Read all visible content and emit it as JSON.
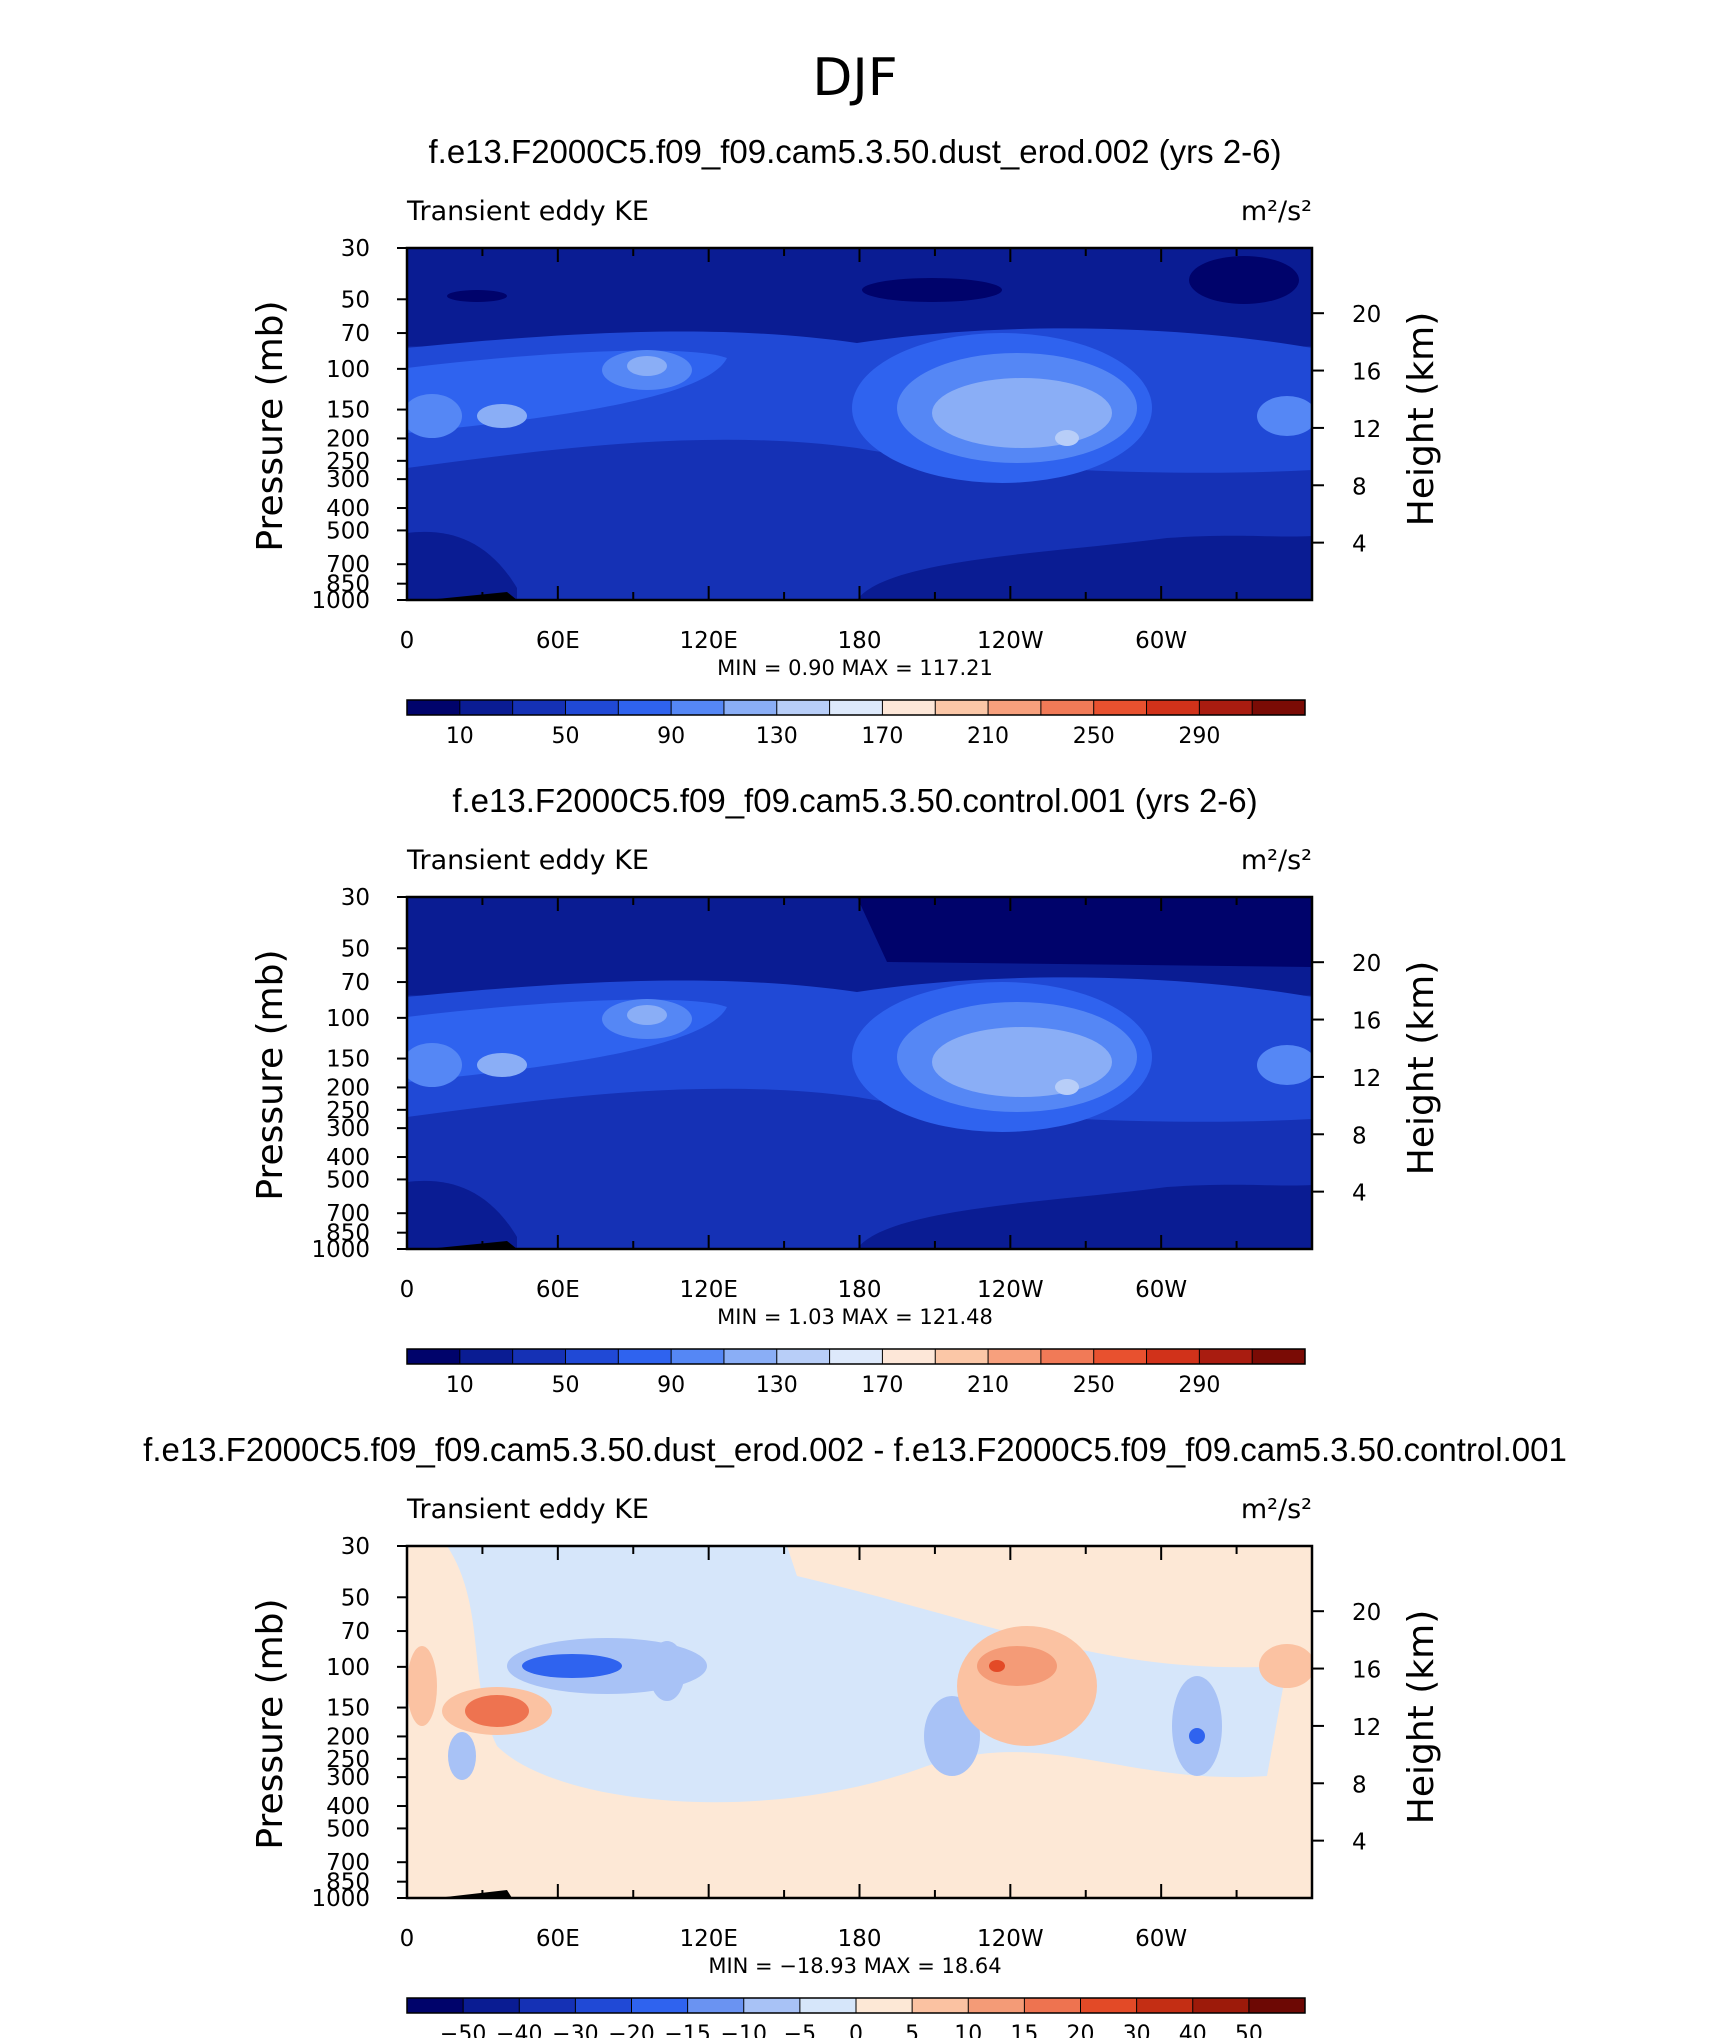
{
  "main_title": "DJF",
  "chart_data": [
    {
      "type": "contour",
      "title": "f.e13.F2000C5.f09_f09.cam5.3.50.dust_erod.002 (yrs 2-6)",
      "left_label": "Transient eddy KE",
      "units": "m²/s²",
      "ylabel": "Pressure (mb)",
      "y2label": "Height (km)",
      "x_ticks": [
        "0",
        "60E",
        "120E",
        "180",
        "120W",
        "60W"
      ],
      "y_ticks": [
        "30",
        "50",
        "70",
        "100",
        "150",
        "200",
        "250",
        "300",
        "400",
        "500",
        "700",
        "850",
        "1000"
      ],
      "y2_ticks": [
        "20",
        "16",
        "12",
        "8",
        "4"
      ],
      "minmax": "MIN =    0.90   MAX =  117.21",
      "min": 0.9,
      "max": 117.21,
      "colorbar_labels": [
        "10",
        "50",
        "90",
        "130",
        "170",
        "210",
        "250",
        "290"
      ]
    },
    {
      "type": "contour",
      "title": "f.e13.F2000C5.f09_f09.cam5.3.50.control.001 (yrs 2-6)",
      "left_label": "Transient eddy KE",
      "units": "m²/s²",
      "ylabel": "Pressure (mb)",
      "y2label": "Height (km)",
      "x_ticks": [
        "0",
        "60E",
        "120E",
        "180",
        "120W",
        "60W"
      ],
      "y_ticks": [
        "30",
        "50",
        "70",
        "100",
        "150",
        "200",
        "250",
        "300",
        "400",
        "500",
        "700",
        "850",
        "1000"
      ],
      "y2_ticks": [
        "20",
        "16",
        "12",
        "8",
        "4"
      ],
      "minmax": "MIN =    1.03   MAX =  121.48",
      "min": 1.03,
      "max": 121.48,
      "colorbar_labels": [
        "10",
        "50",
        "90",
        "130",
        "170",
        "210",
        "250",
        "290"
      ]
    },
    {
      "type": "contour",
      "title": "f.e13.F2000C5.f09_f09.cam5.3.50.dust_erod.002 - f.e13.F2000C5.f09_f09.cam5.3.50.control.001",
      "left_label": "Transient eddy KE",
      "units": "m²/s²",
      "ylabel": "Pressure (mb)",
      "y2label": "Height (km)",
      "x_ticks": [
        "0",
        "60E",
        "120E",
        "180",
        "120W",
        "60W"
      ],
      "y_ticks": [
        "30",
        "50",
        "70",
        "100",
        "150",
        "200",
        "250",
        "300",
        "400",
        "500",
        "700",
        "850",
        "1000"
      ],
      "y2_ticks": [
        "20",
        "16",
        "12",
        "8",
        "4"
      ],
      "minmax": "MIN = −18.93   MAX =   18.64",
      "min": -18.93,
      "max": 18.64,
      "colorbar_labels": [
        "−50",
        "−40",
        "−30",
        "−20",
        "−15",
        "−10",
        "−5",
        "0",
        "5",
        "10",
        "15",
        "20",
        "30",
        "40",
        "50"
      ]
    }
  ],
  "colors": {
    "seq": [
      "#00036b",
      "#0a1c93",
      "#1531b5",
      "#2049d6",
      "#2f63ef",
      "#5587f5",
      "#8aaef6",
      "#b8cef8",
      "#dde9fb",
      "#fde7d8",
      "#fbc7a7",
      "#f7a07d",
      "#f17a57",
      "#e8512f",
      "#d1321a",
      "#a91c10",
      "#7a0b05"
    ],
    "div": [
      "#00036b",
      "#0a1c93",
      "#1531b5",
      "#2049d6",
      "#2f63ef",
      "#6a93f2",
      "#a8c2f6",
      "#d6e6fa",
      "#fde8d6",
      "#fbc2a2",
      "#f49b77",
      "#ee7350",
      "#e34a27",
      "#c42e14",
      "#9d1a0a",
      "#6d0804"
    ]
  }
}
